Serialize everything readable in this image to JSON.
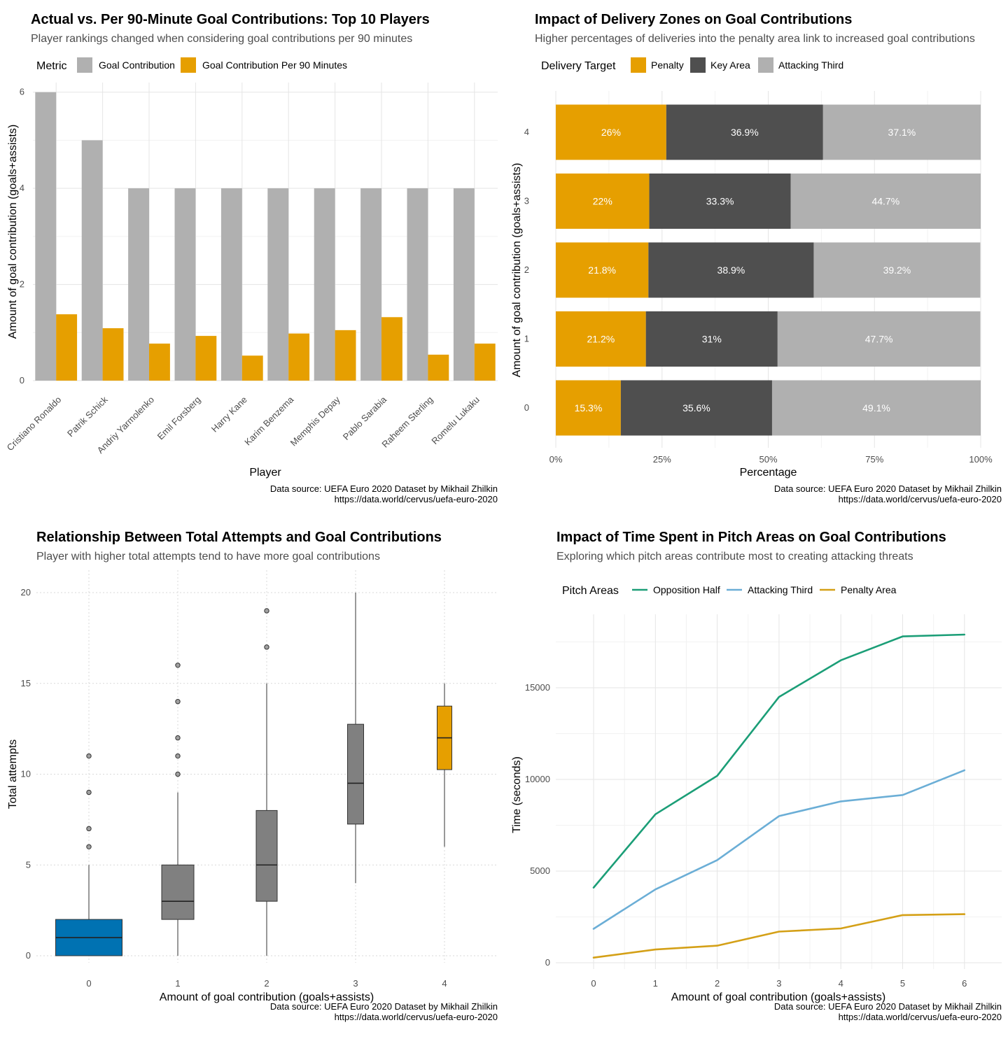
{
  "chart_data": [
    {
      "type": "bar",
      "title": "Actual vs. Per 90-Minute Goal Contributions: Top 10 Players",
      "subtitle": "Player rankings changed when considering goal contributions per 90 minutes",
      "legend_title": "Metric",
      "legend_position": "top",
      "xlabel": "Player",
      "ylabel": "Amount of goal contribution (goals+assists)",
      "ylim": [
        0,
        6.2
      ],
      "yticks": [
        0,
        2,
        4,
        6
      ],
      "categories": [
        "Cristiano Ronaldo",
        "Patrik Schick",
        "Andriy Yarmolenko",
        "Emil Forsberg",
        "Harry Kane",
        "Karim Benzema",
        "Memphis Depay",
        "Pablo Sarabia",
        "Raheem Sterling",
        "Romelu Lukaku"
      ],
      "series": [
        {
          "name": "Goal Contribution",
          "color": "#b0b0b0",
          "values": [
            6,
            5,
            4,
            4,
            4,
            4,
            4,
            4,
            4,
            4
          ]
        },
        {
          "name": "Goal Contribution Per 90 Minutes",
          "color": "#e69f00",
          "values": [
            1.38,
            1.09,
            0.77,
            0.93,
            0.52,
            0.98,
            1.05,
            1.32,
            0.54,
            0.77
          ]
        }
      ],
      "grid": true,
      "caption": [
        "Data source: UEFA Euro 2020 Dataset by Mikhail Zhilkin",
        "https://data.world/cervus/uefa-euro-2020"
      ]
    },
    {
      "type": "bar",
      "orientation": "horizontal",
      "stacked": "percent",
      "title": "Impact of Delivery Zones on Goal Contributions",
      "subtitle": "Higher percentages of deliveries into the penalty area link to increased goal contributions",
      "legend_title": "Delivery Target",
      "legend_position": "top",
      "xlabel": "Percentage",
      "ylabel": "Amount of goal contribution (goals+assists)",
      "xlim": [
        0,
        100
      ],
      "xticks": [
        "0%",
        "25%",
        "50%",
        "75%",
        "100%"
      ],
      "categories": [
        "0",
        "1",
        "2",
        "3",
        "4"
      ],
      "series": [
        {
          "name": "Penalty",
          "color": "#e69f00",
          "values": [
            15.3,
            21.2,
            21.8,
            22,
            26
          ],
          "labels": [
            "15.3%",
            "21.2%",
            "21.8%",
            "22%",
            "26%"
          ]
        },
        {
          "name": "Key Area",
          "color": "#4f4f4f",
          "values": [
            35.6,
            31,
            38.9,
            33.3,
            36.9
          ],
          "labels": [
            "35.6%",
            "31%",
            "38.9%",
            "33.3%",
            "36.9%"
          ]
        },
        {
          "name": "Attacking Third",
          "color": "#b0b0b0",
          "values": [
            49.1,
            47.7,
            39.2,
            44.7,
            37.1
          ],
          "labels": [
            "49.1%",
            "47.7%",
            "39.2%",
            "44.7%",
            "37.1%"
          ]
        }
      ],
      "grid": true,
      "caption": [
        "Data source: UEFA Euro 2020 Dataset by Mikhail Zhilkin",
        "https://data.world/cervus/uefa-euro-2020"
      ]
    },
    {
      "type": "box",
      "title": "Relationship Between Total Attempts and Goal Contributions",
      "subtitle": "Player with higher total attempts tend to have more goal contributions",
      "xlabel": "Amount of goal contribution (goals+assists)",
      "ylabel": "Total attempts",
      "ylim": [
        -0.5,
        20.8
      ],
      "yticks": [
        0,
        5,
        10,
        15,
        20
      ],
      "categories": [
        "0",
        "1",
        "2",
        "3",
        "4"
      ],
      "boxes": [
        {
          "x": "0",
          "min": 0,
          "q1": 0,
          "median": 1,
          "q3": 2,
          "max": 5,
          "outliers": [
            6,
            7,
            9,
            11
          ],
          "color": "#0072b2"
        },
        {
          "x": "1",
          "min": 0,
          "q1": 2,
          "median": 3,
          "q3": 5,
          "max": 9,
          "outliers": [
            10,
            11,
            12,
            14,
            16
          ],
          "color": "#808080"
        },
        {
          "x": "2",
          "min": 0,
          "q1": 3,
          "median": 5,
          "q3": 8,
          "max": 15,
          "outliers": [
            17,
            19
          ],
          "color": "#808080"
        },
        {
          "x": "3",
          "min": 4,
          "q1": 7.25,
          "median": 9.5,
          "q3": 12.75,
          "max": 20,
          "outliers": [],
          "color": "#808080"
        },
        {
          "x": "4",
          "min": 6,
          "q1": 10.25,
          "median": 12,
          "q3": 13.75,
          "max": 15,
          "outliers": [],
          "color": "#e69f00"
        }
      ],
      "grid": "dotted",
      "caption": [
        "Data source: UEFA Euro 2020 Dataset by Mikhail Zhilkin",
        "https://data.world/cervus/uefa-euro-2020"
      ]
    },
    {
      "type": "line",
      "title": "Impact of Time Spent in Pitch Areas on Goal Contributions",
      "subtitle": "Exploring which pitch areas contribute most to creating attacking threats",
      "legend_title": "Pitch Areas",
      "legend_position": "top",
      "xlabel": "Amount of goal contribution (goals+assists)",
      "ylabel": "Time (seconds)",
      "xlim": [
        -0.5,
        6.6
      ],
      "ylim": [
        -300,
        18800
      ],
      "xticks": [
        0,
        1,
        2,
        3,
        4,
        5,
        6
      ],
      "yticks": [
        0,
        5000,
        10000,
        15000
      ],
      "x": [
        0,
        1,
        2,
        3,
        4,
        5,
        6
      ],
      "series": [
        {
          "name": "Opposition Half",
          "color": "#1b9e77",
          "values": [
            4100,
            8100,
            10200,
            14500,
            16500,
            17800,
            17900
          ]
        },
        {
          "name": "Attacking Third",
          "color": "#6baed6",
          "values": [
            1850,
            4000,
            5600,
            8000,
            8800,
            9150,
            10500
          ]
        },
        {
          "name": "Penalty Area",
          "color": "#d4a017",
          "values": [
            280,
            720,
            930,
            1700,
            1870,
            2600,
            2650
          ]
        }
      ],
      "grid": true,
      "caption": [
        "Data source: UEFA Euro 2020 Dataset by Mikhail Zhilkin",
        "https://data.world/cervus/uefa-euro-2020"
      ]
    }
  ]
}
